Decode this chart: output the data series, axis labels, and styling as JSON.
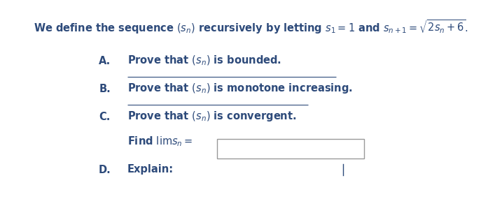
{
  "bg_color": "#ffffff",
  "title_text": "We define the sequence $(s_n)$ recursively by letting $s_1 = 1$ and $s_{n+1} = \\sqrt{2s_n + 6}.$",
  "font_color": "#2d4a7a",
  "font_size": 10.5,
  "label_font_size": 10.5,
  "line_color": "#2d4a7a",
  "box_edge_color": "#999999",
  "box_face_color": "#ffffff",
  "items": [
    {
      "label": "A.",
      "text": "Prove that $(s_n)$ is bounded.",
      "has_overline": false
    },
    {
      "label": "B.",
      "text": "Prove that $(s_n)$ is monotone increasing.",
      "has_overline": true
    },
    {
      "label": "C.",
      "text": "Prove that $(s_n)$ is convergent.",
      "has_overline": true
    }
  ],
  "find_lim_text": "Find $\\lim s_n =$",
  "explain_label": "D.",
  "explain_text": "Explain:"
}
